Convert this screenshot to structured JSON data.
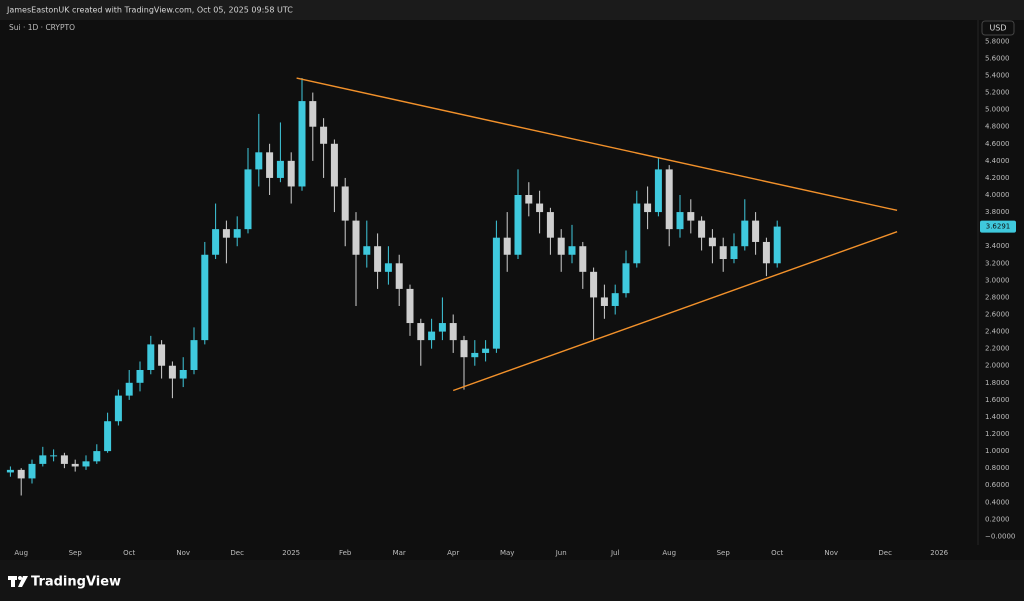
{
  "chart_data": {
    "type": "candlestick",
    "credit": "JamesEastonUK created with TradingView.com, Oct 05, 2025 09:58 UTC",
    "title": "Sui · 1D · CRYPTO",
    "currency": "USD",
    "brand": "TradingView",
    "categories": [
      null,
      "Aug",
      null,
      null,
      null,
      null,
      "Sep",
      null,
      null,
      null,
      null,
      "Oct",
      null,
      null,
      null,
      null,
      "Nov",
      null,
      null,
      null,
      null,
      "Dec",
      null,
      null,
      null,
      null,
      "2025",
      null,
      null,
      null,
      null,
      "Feb",
      null,
      null,
      null,
      null,
      "Mar",
      null,
      null,
      null,
      null,
      "Apr",
      null,
      null,
      null,
      null,
      "May",
      null,
      null,
      null,
      null,
      "Jun",
      null,
      null,
      null,
      null,
      "Jul",
      null,
      null,
      null,
      null,
      "Aug",
      null,
      null,
      null,
      null,
      "Sep",
      null,
      null,
      null,
      null,
      "Oct",
      null,
      null,
      null,
      null,
      "Nov",
      null,
      null,
      null,
      null,
      "Dec",
      null,
      null,
      null,
      null,
      "2026",
      null,
      null,
      null
    ],
    "open": [
      0.75,
      0.78,
      0.68,
      0.85,
      0.95,
      0.95,
      0.85,
      0.82,
      0.88,
      1.0,
      1.35,
      1.65,
      1.8,
      1.95,
      2.25,
      2.0,
      1.85,
      1.95,
      2.3,
      3.3,
      3.6,
      3.5,
      3.6,
      4.3,
      4.5,
      4.2,
      4.4,
      4.1,
      5.1,
      4.8,
      4.6,
      4.1,
      3.7,
      3.3,
      3.4,
      3.1,
      3.2,
      2.9,
      2.5,
      2.3,
      2.4,
      2.5,
      2.3,
      2.1,
      2.15,
      2.2,
      3.5,
      3.3,
      4.0,
      3.9,
      3.8,
      3.5,
      3.3,
      3.4,
      3.1,
      2.8,
      2.7,
      2.85,
      3.2,
      3.9,
      3.8,
      4.3,
      3.6,
      3.8,
      3.7,
      3.5,
      3.4,
      3.25,
      3.4,
      3.7,
      3.45,
      3.2,
      null,
      null,
      null,
      null,
      null,
      null,
      null,
      null,
      null,
      null,
      null,
      null,
      null,
      null,
      null,
      null,
      null,
      null
    ],
    "high": [
      0.82,
      0.8,
      0.9,
      1.05,
      1.02,
      0.98,
      0.9,
      0.95,
      1.08,
      1.45,
      1.72,
      1.95,
      2.05,
      2.35,
      2.3,
      2.05,
      2.1,
      2.45,
      3.45,
      3.9,
      3.7,
      3.75,
      4.55,
      4.95,
      4.6,
      4.85,
      4.5,
      5.37,
      5.2,
      4.9,
      4.65,
      4.2,
      3.8,
      3.7,
      3.55,
      3.4,
      3.3,
      2.95,
      2.55,
      2.55,
      2.8,
      2.6,
      2.35,
      2.3,
      2.3,
      3.7,
      3.8,
      4.3,
      4.15,
      4.05,
      3.85,
      3.6,
      3.65,
      3.45,
      3.15,
      2.95,
      2.95,
      3.35,
      4.05,
      4.1,
      4.44,
      4.35,
      4.0,
      3.95,
      3.75,
      3.6,
      3.5,
      3.55,
      3.95,
      3.8,
      3.5,
      3.7,
      null,
      null,
      null,
      null,
      null,
      null,
      null,
      null,
      null,
      null,
      null,
      null,
      null,
      null,
      null,
      null,
      null,
      null
    ],
    "low": [
      0.7,
      0.48,
      0.62,
      0.82,
      0.88,
      0.8,
      0.76,
      0.78,
      0.85,
      0.98,
      1.3,
      1.6,
      1.7,
      1.9,
      1.85,
      1.62,
      1.75,
      1.9,
      2.25,
      3.25,
      3.2,
      3.4,
      3.55,
      4.1,
      4.0,
      4.15,
      3.9,
      4.05,
      4.4,
      4.2,
      3.8,
      3.4,
      2.7,
      3.15,
      2.9,
      2.95,
      2.7,
      2.35,
      2.0,
      2.2,
      2.3,
      2.15,
      1.72,
      2.0,
      2.05,
      2.15,
      3.1,
      3.25,
      3.75,
      3.55,
      3.3,
      3.1,
      3.2,
      2.9,
      2.3,
      2.55,
      2.6,
      2.8,
      3.15,
      3.6,
      3.75,
      3.4,
      3.5,
      3.55,
      3.35,
      3.2,
      3.1,
      3.2,
      3.35,
      3.3,
      3.05,
      3.15,
      null,
      null,
      null,
      null,
      null,
      null,
      null,
      null,
      null,
      null,
      null,
      null,
      null,
      null,
      null,
      null,
      null,
      null
    ],
    "close": [
      0.78,
      0.68,
      0.85,
      0.95,
      0.95,
      0.85,
      0.82,
      0.88,
      1.0,
      1.35,
      1.65,
      1.8,
      1.95,
      2.25,
      2.0,
      1.85,
      1.95,
      2.3,
      3.3,
      3.6,
      3.5,
      3.6,
      4.3,
      4.5,
      4.2,
      4.4,
      4.1,
      5.1,
      4.8,
      4.6,
      4.1,
      3.7,
      3.3,
      3.4,
      3.1,
      3.2,
      2.9,
      2.5,
      2.3,
      2.4,
      2.5,
      2.3,
      2.1,
      2.15,
      2.2,
      3.5,
      3.3,
      4.0,
      3.9,
      3.8,
      3.5,
      3.3,
      3.4,
      3.1,
      2.8,
      2.7,
      2.85,
      3.2,
      3.9,
      3.8,
      4.3,
      3.6,
      3.8,
      3.7,
      3.5,
      3.4,
      3.25,
      3.4,
      3.7,
      3.45,
      3.2,
      3.63,
      null,
      null,
      null,
      null,
      null,
      null,
      null,
      null,
      null,
      null,
      null,
      null,
      null,
      null,
      null,
      null,
      null,
      null
    ],
    "up_color": "#3fc9dd",
    "down_color": "#cfcfcf",
    "last_price": 3.6291,
    "trendline_color": "#f2912b",
    "trendlines": [
      {
        "x": [
          26.5,
          82.1
        ],
        "values": [
          5.37,
          3.82
        ]
      },
      {
        "x": [
          41,
          82.1
        ],
        "values": [
          1.71,
          3.57
        ]
      }
    ],
    "ylim": [
      -0.1,
      6.05
    ],
    "yticks": [
      {
        "value": 5.8,
        "label": "5.8000"
      },
      {
        "value": 5.6,
        "label": "5.6000"
      },
      {
        "value": 5.4,
        "label": "5.4000"
      },
      {
        "value": 5.2,
        "label": "5.2000"
      },
      {
        "value": 5.0,
        "label": "5.0000"
      },
      {
        "value": 4.8,
        "label": "4.8000"
      },
      {
        "value": 4.6,
        "label": "4.6000"
      },
      {
        "value": 4.4,
        "label": "4.4000"
      },
      {
        "value": 4.2,
        "label": "4.2000"
      },
      {
        "value": 4.0,
        "label": "4.0000"
      },
      {
        "value": 3.8,
        "label": "3.8000"
      },
      {
        "value": 3.6,
        "label": "3.6000"
      },
      {
        "value": 3.4,
        "label": "3.4000"
      },
      {
        "value": 3.2,
        "label": "3.2000"
      },
      {
        "value": 3.0,
        "label": "3.0000"
      },
      {
        "value": 2.8,
        "label": "2.8000"
      },
      {
        "value": 2.6,
        "label": "2.6000"
      },
      {
        "value": 2.4,
        "label": "2.4000"
      },
      {
        "value": 2.2,
        "label": "2.2000"
      },
      {
        "value": 2.0,
        "label": "2.0000"
      },
      {
        "value": 1.8,
        "label": "1.8000"
      },
      {
        "value": 1.6,
        "label": "1.6000"
      },
      {
        "value": 1.4,
        "label": "1.4000"
      },
      {
        "value": 1.2,
        "label": "1.2000"
      },
      {
        "value": 1.0,
        "label": "1.0000"
      },
      {
        "value": 0.8,
        "label": "0.8000"
      },
      {
        "value": 0.6,
        "label": "0.6000"
      },
      {
        "value": 0.4,
        "label": "0.4000"
      },
      {
        "value": 0.2,
        "label": "0.2000"
      },
      {
        "value": 0,
        "label": "−0.0000"
      }
    ],
    "grid": false
  }
}
